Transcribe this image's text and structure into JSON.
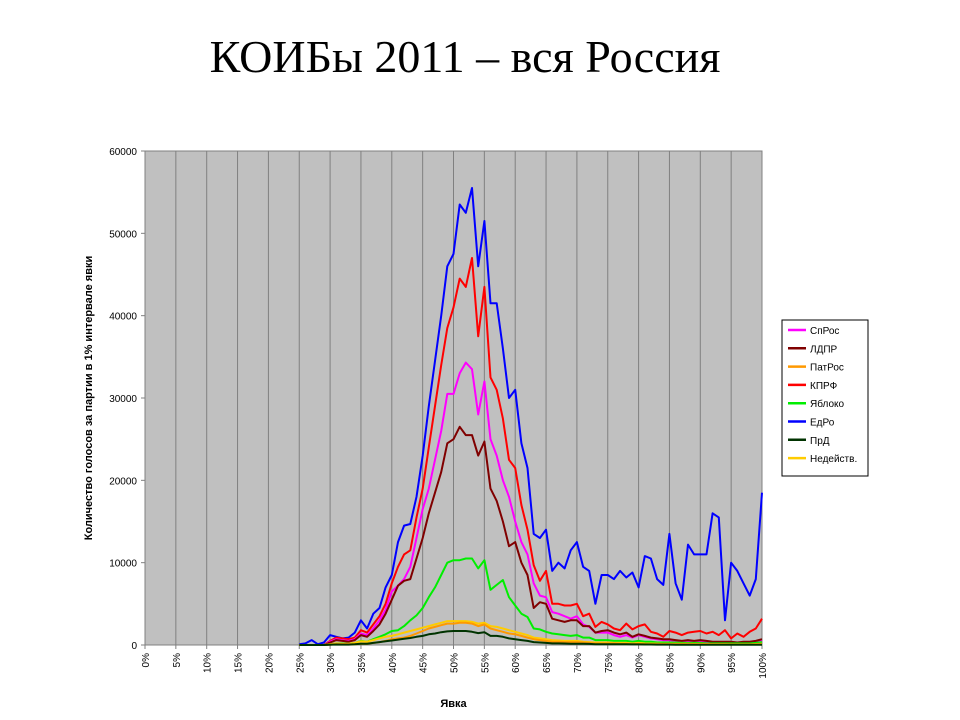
{
  "slide": {
    "title": "КОИБы 2011 – вся Россия"
  },
  "chart_data": {
    "type": "line",
    "title": "",
    "xlabel": "Явка",
    "ylabel": "Количество голосов за партии в 1% интервале явки",
    "ylim": [
      0,
      60000
    ],
    "yticks": [
      0,
      10000,
      20000,
      30000,
      40000,
      50000,
      60000
    ],
    "xlim": [
      0,
      100
    ],
    "xticks": [
      "0%",
      "5%",
      "10%",
      "15%",
      "20%",
      "25%",
      "30%",
      "35%",
      "40%",
      "45%",
      "50%",
      "55%",
      "60%",
      "65%",
      "70%",
      "75%",
      "80%",
      "85%",
      "90%",
      "95%",
      "100%"
    ],
    "grid": true,
    "legend_position": "right",
    "x": [
      25,
      26,
      27,
      28,
      29,
      30,
      31,
      32,
      33,
      34,
      35,
      36,
      37,
      38,
      39,
      40,
      41,
      42,
      43,
      44,
      45,
      46,
      47,
      48,
      49,
      50,
      51,
      52,
      53,
      54,
      55,
      56,
      57,
      58,
      59,
      60,
      61,
      62,
      63,
      64,
      65,
      66,
      67,
      68,
      69,
      70,
      71,
      72,
      73,
      74,
      75,
      76,
      77,
      78,
      79,
      80,
      81,
      82,
      83,
      84,
      85,
      86,
      87,
      88,
      89,
      90,
      91,
      92,
      93,
      94,
      95,
      96,
      97,
      98,
      99,
      100
    ],
    "series": [
      {
        "name": "СпРос",
        "color": "#ff00ff",
        "values": [
          0,
          0,
          0,
          0,
          0,
          400,
          700,
          600,
          500,
          700,
          1400,
          1200,
          2000,
          3000,
          4300,
          6500,
          7200,
          8000,
          9500,
          13000,
          16500,
          19000,
          22500,
          26000,
          30500,
          30500,
          33000,
          34300,
          33500,
          28000,
          32000,
          25000,
          23000,
          20000,
          18000,
          15000,
          12500,
          11000,
          7500,
          6000,
          5800,
          4000,
          3800,
          3500,
          3200,
          3500,
          2500,
          2200,
          1500,
          1500,
          1500,
          1200,
          1000,
          1200,
          900,
          1200,
          1000,
          800,
          700,
          600,
          600,
          500,
          400,
          500,
          400,
          500,
          400,
          300,
          300,
          300,
          300,
          300,
          300,
          300,
          400,
          600
        ]
      },
      {
        "name": "ЛДПР",
        "color": "#800000",
        "values": [
          0,
          0,
          0,
          0,
          0,
          300,
          600,
          500,
          400,
          600,
          1200,
          1000,
          1700,
          2500,
          3800,
          5500,
          7200,
          7800,
          8000,
          10500,
          13000,
          16000,
          18500,
          21000,
          24500,
          25000,
          26500,
          25500,
          25500,
          23000,
          24700,
          19000,
          17500,
          15000,
          12000,
          12500,
          10000,
          8500,
          4500,
          5200,
          5000,
          3200,
          3000,
          2800,
          3000,
          3000,
          2300,
          2300,
          1500,
          1700,
          1800,
          1500,
          1300,
          1500,
          1000,
          1300,
          1100,
          900,
          800,
          700,
          700,
          600,
          500,
          600,
          500,
          600,
          500,
          400,
          400,
          400,
          400,
          300,
          400,
          400,
          500,
          700
        ]
      },
      {
        "name": "ПатРос",
        "color": "#ff9900",
        "values": [
          0,
          0,
          0,
          0,
          0,
          50,
          80,
          80,
          70,
          100,
          150,
          150,
          250,
          350,
          500,
          700,
          800,
          900,
          1100,
          1400,
          1700,
          2000,
          2200,
          2400,
          2600,
          2600,
          2700,
          2700,
          2600,
          2300,
          2500,
          2000,
          1800,
          1600,
          1400,
          1300,
          1100,
          900,
          700,
          600,
          500,
          400,
          400,
          350,
          350,
          350,
          300,
          250,
          200,
          200,
          200,
          200,
          150,
          150,
          120,
          150,
          120,
          100,
          100,
          100,
          100,
          80,
          80,
          80,
          70,
          70,
          70,
          60,
          60,
          60,
          60,
          60,
          60,
          60,
          60,
          80
        ]
      },
      {
        "name": "КПРФ",
        "color": "#ff0000",
        "values": [
          0,
          0,
          0,
          0,
          0,
          500,
          900,
          800,
          700,
          900,
          1800,
          1500,
          2500,
          3500,
          5000,
          7500,
          9500,
          11000,
          11500,
          15500,
          19000,
          24000,
          29000,
          34000,
          38500,
          41000,
          44500,
          43500,
          47000,
          37500,
          43500,
          32500,
          31000,
          27500,
          22500,
          21500,
          17000,
          14000,
          9700,
          7800,
          9000,
          5000,
          5000,
          4800,
          4800,
          5000,
          3500,
          3800,
          2200,
          2800,
          2500,
          2000,
          1800,
          2600,
          1900,
          2300,
          2500,
          1600,
          1400,
          1000,
          1700,
          1500,
          1200,
          1500,
          1600,
          1700,
          1400,
          1600,
          1200,
          1800,
          800,
          1400,
          1000,
          1600,
          2000,
          3200
        ]
      },
      {
        "name": "Яблоко",
        "color": "#00ee00",
        "values": [
          0,
          0,
          0,
          0,
          0,
          100,
          200,
          200,
          150,
          250,
          500,
          400,
          700,
          1000,
          1300,
          1700,
          1800,
          2300,
          3000,
          3600,
          4500,
          5800,
          7000,
          8500,
          10000,
          10300,
          10300,
          10500,
          10500,
          9300,
          10300,
          6700,
          7300,
          7900,
          5800,
          4800,
          3800,
          3400,
          2000,
          1900,
          1600,
          1400,
          1300,
          1200,
          1100,
          1200,
          900,
          900,
          600,
          600,
          600,
          500,
          500,
          500,
          400,
          500,
          400,
          400,
          300,
          300,
          300,
          300,
          250,
          250,
          250,
          250,
          200,
          200,
          200,
          200,
          200,
          200,
          200,
          200,
          250,
          350
        ]
      },
      {
        "name": "ЕдРо",
        "color": "#0000ff",
        "values": [
          100,
          200,
          600,
          100,
          300,
          1200,
          1000,
          800,
          900,
          1500,
          3000,
          2000,
          3800,
          4500,
          7000,
          8500,
          12500,
          14500,
          14700,
          18000,
          23000,
          29000,
          34500,
          40000,
          46000,
          47500,
          53500,
          52500,
          55500,
          46000,
          51500,
          41500,
          41500,
          36000,
          30000,
          31000,
          24500,
          21500,
          13500,
          13000,
          14000,
          9000,
          10000,
          9300,
          11500,
          12500,
          9500,
          9000,
          5000,
          8500,
          8500,
          8000,
          9000,
          8200,
          8800,
          7000,
          10800,
          10500,
          8000,
          7300,
          13500,
          7500,
          5500,
          12200,
          11000,
          11000,
          11000,
          16000,
          15500,
          3000,
          10000,
          9000,
          7500,
          6000,
          8000,
          18500
        ]
      },
      {
        "name": "ПрД",
        "color": "#003300",
        "values": [
          0,
          0,
          0,
          0,
          0,
          30,
          60,
          50,
          50,
          80,
          150,
          150,
          250,
          350,
          450,
          550,
          650,
          750,
          850,
          1000,
          1100,
          1300,
          1400,
          1550,
          1650,
          1700,
          1700,
          1700,
          1600,
          1450,
          1550,
          1100,
          1100,
          1000,
          800,
          700,
          600,
          500,
          350,
          300,
          250,
          200,
          200,
          180,
          160,
          160,
          140,
          130,
          100,
          100,
          100,
          90,
          80,
          80,
          70,
          70,
          60,
          60,
          50,
          50,
          50,
          40,
          40,
          40,
          40,
          40,
          40,
          30,
          30,
          30,
          30,
          30,
          30,
          30,
          30,
          40
        ]
      },
      {
        "name": "Недейств.",
        "color": "#ffcc00",
        "values": [
          0,
          0,
          0,
          0,
          0,
          100,
          200,
          150,
          150,
          250,
          450,
          400,
          600,
          800,
          1000,
          1100,
          1300,
          1500,
          1700,
          1900,
          2100,
          2300,
          2500,
          2700,
          2900,
          2900,
          2900,
          2900,
          2800,
          2600,
          2700,
          2300,
          2200,
          2000,
          1800,
          1600,
          1400,
          1200,
          900,
          800,
          700,
          600,
          550,
          500,
          500,
          500,
          400,
          350,
          300,
          300,
          300,
          250,
          250,
          250,
          200,
          250,
          200,
          180,
          170,
          160,
          160,
          150,
          140,
          140,
          130,
          130,
          120,
          110,
          110,
          110,
          100,
          100,
          100,
          100,
          120,
          160
        ]
      }
    ]
  }
}
